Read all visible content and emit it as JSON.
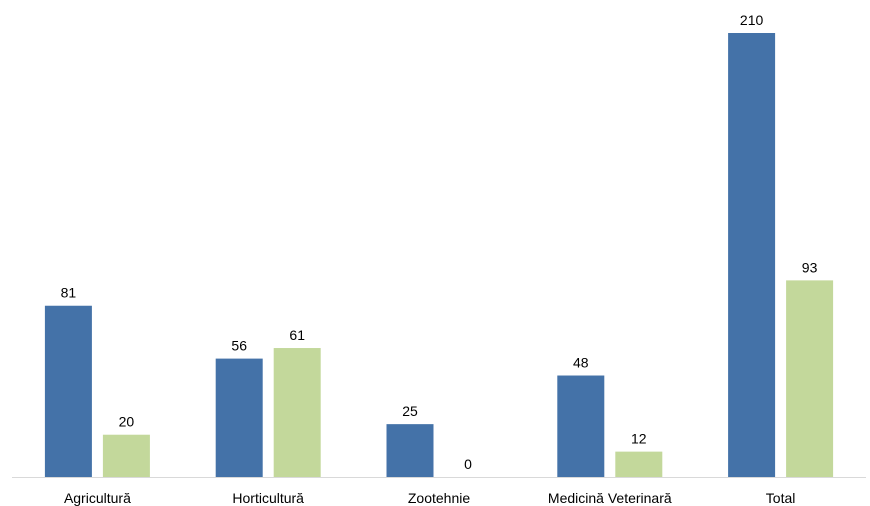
{
  "chart_data": {
    "type": "bar",
    "categories": [
      "Agricultură",
      "Horticultură",
      "Zootehnie",
      "Medicină Veterinară",
      "Total"
    ],
    "series": [
      {
        "values": [
          81,
          56,
          25,
          48,
          210
        ],
        "color": "#4472a8"
      },
      {
        "values": [
          20,
          61,
          0,
          12,
          93
        ],
        "color": "#c3d89b"
      }
    ],
    "data_labels": true,
    "ylim": [
      0,
      210
    ],
    "grid": false,
    "legend": "none",
    "axis_line_color": "#d9d9d9"
  }
}
